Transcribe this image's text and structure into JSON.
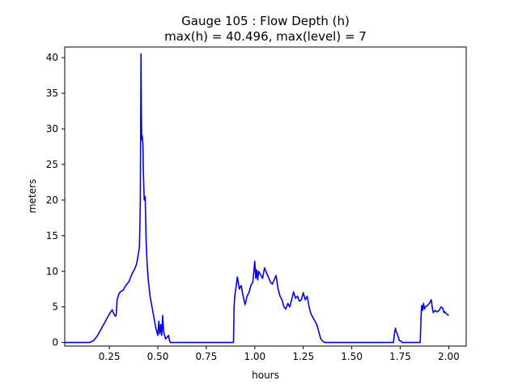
{
  "chart_data": {
    "type": "line",
    "title_line1": "Gauge 105 : Flow Depth (h)",
    "title_line2": "max(h) =  40.496,    max(level) = 7",
    "xlabel": "hours",
    "ylabel": "meters",
    "xlim": [
      0.02,
      2.09
    ],
    "ylim": [
      -0.5,
      41.5
    ],
    "xticks": [
      0.25,
      0.5,
      0.75,
      1.0,
      1.25,
      1.5,
      1.75,
      2.0
    ],
    "xtick_labels": [
      "0.25",
      "0.50",
      "0.75",
      "1.00",
      "1.25",
      "1.50",
      "1.75",
      "2.00"
    ],
    "yticks": [
      0,
      5,
      10,
      15,
      20,
      25,
      30,
      35,
      40
    ],
    "ytick_labels": [
      "0",
      "5",
      "10",
      "15",
      "20",
      "25",
      "30",
      "35",
      "40"
    ],
    "grid": false,
    "series": [
      {
        "color": "#0000ff",
        "x": [
          0.02,
          0.15,
          0.17,
          0.19,
          0.21,
          0.23,
          0.25,
          0.265,
          0.27,
          0.28,
          0.285,
          0.29,
          0.3,
          0.31,
          0.32,
          0.33,
          0.34,
          0.35,
          0.36,
          0.37,
          0.38,
          0.39,
          0.4,
          0.405,
          0.41,
          0.413,
          0.415,
          0.417,
          0.42,
          0.423,
          0.425,
          0.43,
          0.435,
          0.44,
          0.445,
          0.45,
          0.46,
          0.47,
          0.48,
          0.49,
          0.5,
          0.505,
          0.51,
          0.515,
          0.52,
          0.525,
          0.53,
          0.54,
          0.55,
          0.555,
          0.56,
          0.565,
          0.57,
          0.89,
          0.893,
          0.897,
          0.9,
          0.91,
          0.92,
          0.93,
          0.94,
          0.95,
          0.96,
          0.97,
          0.98,
          0.99,
          1.0,
          1.005,
          1.01,
          1.015,
          1.02,
          1.03,
          1.04,
          1.05,
          1.06,
          1.07,
          1.08,
          1.09,
          1.1,
          1.11,
          1.12,
          1.13,
          1.14,
          1.15,
          1.16,
          1.17,
          1.18,
          1.19,
          1.2,
          1.21,
          1.22,
          1.23,
          1.24,
          1.25,
          1.26,
          1.27,
          1.28,
          1.29,
          1.3,
          1.31,
          1.32,
          1.33,
          1.34,
          1.35,
          1.36,
          1.37,
          1.38,
          1.715,
          1.72,
          1.725,
          1.73,
          1.735,
          1.74,
          1.745,
          1.75,
          1.755,
          1.76,
          1.85,
          1.853,
          1.857,
          1.86,
          1.865,
          1.87,
          1.875,
          1.88,
          1.89,
          1.9,
          1.91,
          1.915,
          1.92,
          1.93,
          1.94,
          1.95,
          1.96,
          1.97,
          1.975,
          1.98,
          1.99,
          2.0
        ],
        "y": [
          0,
          0,
          0.3,
          1.0,
          2.0,
          3.0,
          4.0,
          4.6,
          4.2,
          3.7,
          3.8,
          6.0,
          6.9,
          7.2,
          7.3,
          7.8,
          8.2,
          8.5,
          9.2,
          9.8,
          10.3,
          11.0,
          12.5,
          13.5,
          20.0,
          40.5,
          33.0,
          28.5,
          29.0,
          27.8,
          24.5,
          20.0,
          20.5,
          14.0,
          11.0,
          9.0,
          6.5,
          5.0,
          3.5,
          2.0,
          1.0,
          3.0,
          1.2,
          2.5,
          1.0,
          3.8,
          1.5,
          0.5,
          0.8,
          1.0,
          0.3,
          0,
          0,
          0,
          5.0,
          6.5,
          7.2,
          9.2,
          7.5,
          8.0,
          6.5,
          5.3,
          6.5,
          7.0,
          8.0,
          8.5,
          11.4,
          9.0,
          10.2,
          8.8,
          10.0,
          9.5,
          9.0,
          10.5,
          9.8,
          9.2,
          8.5,
          8.2,
          8.8,
          9.4,
          7.5,
          6.5,
          6.0,
          5.0,
          4.7,
          5.5,
          5.0,
          6.0,
          7.1,
          6.2,
          6.5,
          5.8,
          6.0,
          7.0,
          6.0,
          6.5,
          5.0,
          4.0,
          3.5,
          3.0,
          2.5,
          1.5,
          0.5,
          0.2,
          0,
          0,
          0,
          0,
          1.2,
          2.0,
          1.5,
          1.2,
          0.8,
          0.3,
          0.2,
          0.2,
          0,
          0,
          0,
          3.5,
          5.2,
          4.5,
          5.5,
          4.7,
          5.0,
          5.2,
          5.5,
          6.0,
          4.9,
          4.2,
          4.5,
          4.3,
          4.5,
          5.0,
          4.8,
          4.2,
          4.3,
          4.0,
          3.8
        ]
      }
    ]
  }
}
